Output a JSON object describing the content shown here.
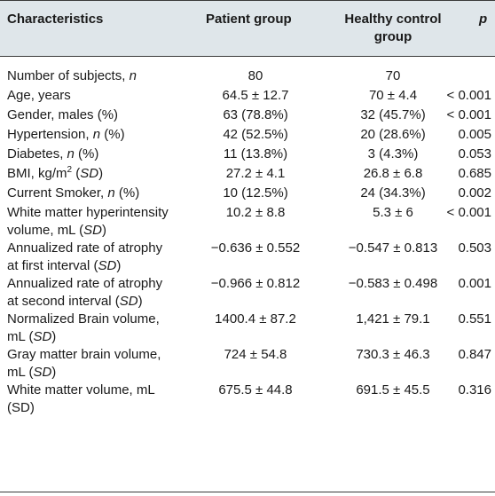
{
  "header": {
    "characteristics": "Characteristics",
    "patient": "Patient group",
    "control_line1": "Healthy control",
    "control_line2": "group",
    "p": "p"
  },
  "rows": [
    {
      "label": "Number of subjects, ",
      "label_it": "n",
      "patient": "80",
      "control": "70",
      "p": ""
    },
    {
      "label": "Age, years",
      "patient": "64.5 ± 12.7",
      "control": "70 ± 4.4",
      "p": "< 0.001"
    },
    {
      "label": "Gender, males (%)",
      "patient": "63 (78.8%)",
      "control": "32 (45.7%)",
      "p": "< 0.001"
    },
    {
      "label": "Hypertension, ",
      "label_it": "n",
      "label_tail": " (%)",
      "patient": "42 (52.5%)",
      "control": "20 (28.6%)",
      "p": "0.005"
    },
    {
      "label": "Diabetes, ",
      "label_it": "n",
      "label_tail": " (%)",
      "patient": "11 (13.8%)",
      "control": "3 (4.3%)",
      "p": "0.053"
    },
    {
      "label": "BMI, kg/m",
      "label_sup": "2",
      "label_it": "SD",
      "patient": "27.2 ± 4.1",
      "control": "26.8 ± 6.8",
      "p": "0.685"
    },
    {
      "label": "Current Smoker, ",
      "label_it": "n",
      "label_tail": " (%)",
      "patient": "10 (12.5%)",
      "control": "24 (34.3%)",
      "p": "0.002"
    },
    {
      "label1": "White matter hyperintensity",
      "label2": "volume, mL (",
      "label_it": "SD",
      "patient": "10.2 ± 8.8",
      "control": "5.3 ± 6",
      "p": "< 0.001"
    },
    {
      "label1": "Annualized rate of atrophy",
      "label2": "at first interval (",
      "label_it": "SD",
      "patient": "−0.636 ± 0.552",
      "control": "−0.547 ± 0.813",
      "p": "0.503"
    },
    {
      "label1": "Annualized rate of atrophy",
      "label2": "at second interval (",
      "label_it": "SD",
      "patient": "−0.966 ± 0.812",
      "control": "−0.583 ± 0.498",
      "p": "0.001"
    },
    {
      "label1": "Normalized Brain volume,",
      "label2": "mL (",
      "label_it": "SD",
      "patient": "1400.4 ± 87.2",
      "control": "1,421 ± 79.1",
      "p": "0.551"
    },
    {
      "label1": "Gray matter brain volume,",
      "label2": "mL (",
      "label_it": "SD",
      "patient": "724 ± 54.8",
      "control": "730.3 ± 46.3",
      "p": "0.847"
    },
    {
      "label1": "White matter volume, mL",
      "label2": "(SD)",
      "patient": "675.5 ± 44.8",
      "control": "691.5 ± 45.5",
      "p": "0.316"
    }
  ]
}
